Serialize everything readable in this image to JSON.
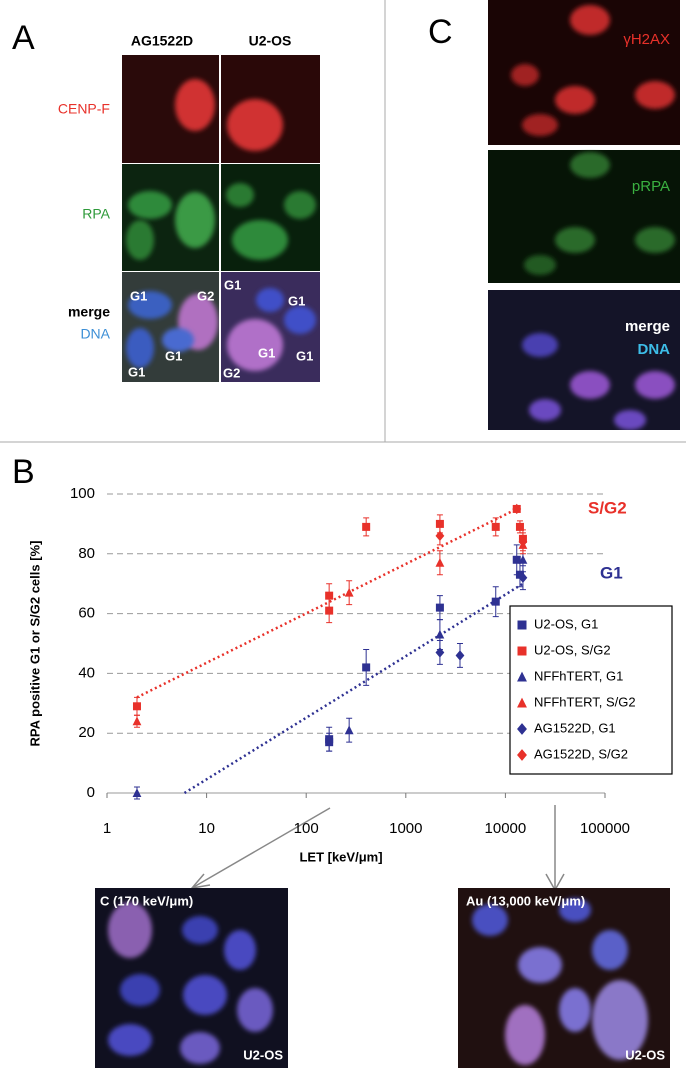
{
  "panel_a": {
    "label": "A",
    "columns": [
      "AG1522D",
      "U2-OS"
    ],
    "rows": [
      "CENP-F",
      "RPA",
      "merge",
      "DNA"
    ],
    "cell_labels_left": [
      "G1",
      "G2",
      "G1",
      "G1"
    ],
    "cell_labels_right": [
      "G1",
      "G1",
      "G1",
      "G1",
      "G2"
    ]
  },
  "panel_c": {
    "label": "C",
    "rows": [
      "γH2AX",
      "pRPA",
      "merge",
      "DNA"
    ]
  },
  "panel_b": {
    "label": "B"
  },
  "chart_data": {
    "type": "scatter",
    "y_label": "RPA positive G1 or S/G2 cells [%]",
    "x_label": "LET [keV/μm]",
    "xscale": "log",
    "xlim": [
      1,
      100000
    ],
    "xticks": [
      1,
      10,
      100,
      1000,
      10000,
      100000
    ],
    "ylim": [
      0,
      100
    ],
    "yticks": [
      0,
      20,
      40,
      60,
      80,
      100
    ],
    "grid": true,
    "legend": "right",
    "annotations": [
      {
        "text": "S/G2",
        "color": "#e8312a"
      },
      {
        "text": "G1",
        "color": "#2e3192"
      }
    ],
    "series": [
      {
        "name": "U2-OS, G1",
        "color": "#2e3192",
        "marker": "square",
        "x": [
          170,
          170,
          400,
          2200,
          8000,
          13000,
          14000
        ],
        "values": [
          17,
          18,
          42,
          62,
          64,
          78,
          73
        ],
        "errors": [
          3,
          4,
          6,
          4,
          5,
          5,
          4
        ]
      },
      {
        "name": "U2-OS, S/G2",
        "color": "#e8312a",
        "marker": "square",
        "x": [
          2,
          170,
          170,
          400,
          2200,
          8000,
          13000,
          14000,
          15000
        ],
        "values": [
          29,
          61,
          66,
          89,
          90,
          89,
          95,
          89,
          85
        ],
        "errors": [
          3,
          4,
          4,
          3,
          3,
          3,
          1,
          2,
          3
        ]
      },
      {
        "name": "NFFhTERT, G1",
        "color": "#2e3192",
        "marker": "triangle",
        "x": [
          2,
          270,
          2200,
          15000
        ],
        "values": [
          0,
          21,
          53,
          78
        ],
        "errors": [
          2,
          4,
          5,
          4
        ]
      },
      {
        "name": "NFFhTERT, S/G2",
        "color": "#e8312a",
        "marker": "triangle",
        "x": [
          2,
          270,
          2200,
          15000
        ],
        "values": [
          24,
          67,
          77,
          83
        ],
        "errors": [
          2,
          4,
          4,
          3
        ]
      },
      {
        "name": "AG1522D, G1",
        "color": "#2e3192",
        "marker": "diamond",
        "x": [
          2200,
          3500,
          15000
        ],
        "values": [
          47,
          46,
          72
        ],
        "errors": [
          4,
          4,
          4
        ]
      },
      {
        "name": "AG1522D, S/G2",
        "color": "#e8312a",
        "marker": "diamond",
        "x": [
          2200,
          13000,
          15000
        ],
        "values": [
          86,
          95,
          84
        ],
        "errors": [
          3,
          1,
          3
        ]
      }
    ],
    "fits": [
      {
        "color": "#e8312a",
        "x": [
          2,
          13000
        ],
        "values": [
          32,
          95
        ]
      },
      {
        "color": "#2e3192",
        "x": [
          6,
          15000
        ],
        "values": [
          0,
          70
        ]
      }
    ]
  },
  "bottom_images": [
    {
      "title": "C (170 keV/μm)",
      "cell": "U2-OS"
    },
    {
      "title": "Au (13,000 keV/μm)",
      "cell": "U2-OS"
    }
  ]
}
